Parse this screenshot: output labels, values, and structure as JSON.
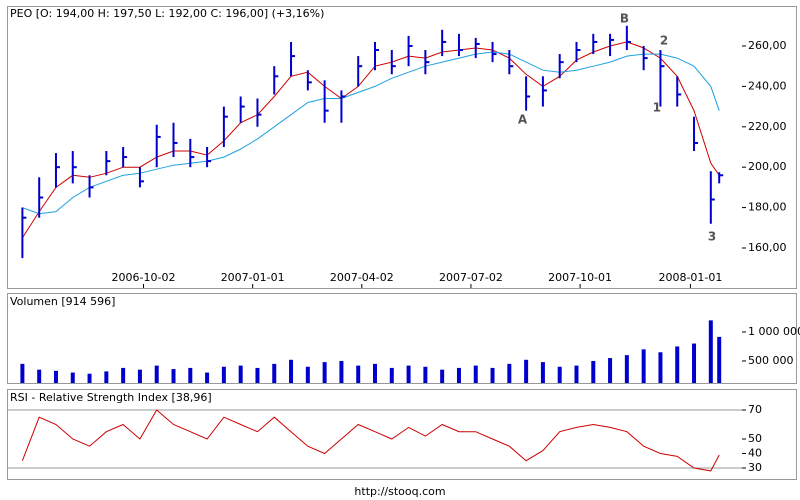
{
  "chart_data": [
    {
      "type": "ohlc",
      "title": "PEO [O: 194,00  H: 197,50  L: 192,00  C: 196,00] (+3,16%)",
      "x": [
        "2006-06-23",
        "2006-07-07",
        "2006-07-21",
        "2006-08-04",
        "2006-08-18",
        "2006-09-01",
        "2006-09-15",
        "2006-09-29",
        "2006-10-13",
        "2006-10-27",
        "2006-11-10",
        "2006-11-24",
        "2006-12-08",
        "2006-12-22",
        "2007-01-05",
        "2007-01-19",
        "2007-02-02",
        "2007-02-16",
        "2007-03-02",
        "2007-03-16",
        "2007-03-30",
        "2007-04-13",
        "2007-04-27",
        "2007-05-11",
        "2007-05-25",
        "2007-06-08",
        "2007-06-22",
        "2007-07-06",
        "2007-07-20",
        "2007-08-03",
        "2007-08-17",
        "2007-08-31",
        "2007-09-14",
        "2007-09-28",
        "2007-10-12",
        "2007-10-26",
        "2007-11-09",
        "2007-11-23",
        "2007-12-07",
        "2007-12-21",
        "2008-01-04",
        "2008-01-18",
        "2008-01-25"
      ],
      "high": [
        180,
        195,
        207,
        208,
        196,
        208,
        210,
        200,
        221,
        222,
        214,
        210,
        230,
        235,
        234,
        250,
        262,
        248,
        243,
        238,
        255,
        262,
        258,
        265,
        258,
        268,
        266,
        264,
        262,
        258,
        245,
        245,
        256,
        262,
        266,
        266,
        270,
        260,
        258,
        245,
        225,
        198,
        197.5
      ],
      "low": [
        155,
        175,
        190,
        192,
        185,
        196,
        200,
        190,
        200,
        205,
        200,
        200,
        210,
        222,
        220,
        236,
        245,
        238,
        222,
        222,
        240,
        248,
        246,
        250,
        246,
        255,
        255,
        254,
        252,
        246,
        228,
        230,
        244,
        252,
        256,
        255,
        258,
        248,
        230,
        230,
        208,
        172,
        192
      ],
      "close": [
        175,
        185,
        200,
        200,
        190,
        203,
        205,
        193,
        215,
        212,
        205,
        203,
        225,
        230,
        226,
        245,
        255,
        242,
        228,
        235,
        250,
        258,
        250,
        260,
        252,
        262,
        258,
        261,
        256,
        250,
        235,
        238,
        252,
        258,
        262,
        263,
        262,
        254,
        250,
        236,
        212,
        184,
        196
      ],
      "color": "#0000cc",
      "series": [
        {
          "color": "#cc0000",
          "values": [
            165,
            178,
            190,
            196,
            195,
            197,
            200,
            200,
            205,
            208,
            208,
            206,
            213,
            222,
            226,
            235,
            245,
            247,
            240,
            234,
            240,
            250,
            252,
            255,
            254,
            257,
            258,
            259,
            258,
            254,
            246,
            240,
            245,
            253,
            257,
            260,
            262,
            259,
            254,
            245,
            228,
            202,
            196
          ]
        },
        {
          "color": "#1ea0e0",
          "values": [
            180,
            177,
            178,
            185,
            190,
            193,
            196,
            197,
            199,
            201,
            202,
            203,
            205,
            209,
            214,
            220,
            226,
            232,
            234,
            234,
            237,
            240,
            244,
            247,
            250,
            252,
            254,
            256,
            257,
            256,
            252,
            248,
            247,
            248,
            250,
            252,
            255,
            256,
            256,
            254,
            250,
            240,
            228
          ]
        }
      ],
      "xlim": [
        "2006-06-11",
        "2008-02-13"
      ],
      "xticks": [
        "2006-10-02",
        "2007-01-01",
        "2007-04-02",
        "2007-07-02",
        "2007-10-01",
        "2008-01-01"
      ],
      "ylim": [
        140.2,
        278.8
      ],
      "yticks": [
        {
          "value": 160,
          "label": "160,00"
        },
        {
          "value": 180,
          "label": "180,00"
        },
        {
          "value": 200,
          "label": "200,00"
        },
        {
          "value": 220,
          "label": "220,00"
        },
        {
          "value": 240,
          "label": "240,00"
        },
        {
          "value": 260,
          "label": "260,00"
        }
      ],
      "annotations": [
        {
          "label": "A",
          "x": "2007-08-14",
          "y": 223.4
        },
        {
          "label": "B",
          "x": "2007-11-07",
          "y": 273.4
        },
        {
          "label": "1",
          "x": "2007-12-04",
          "y": 229.3
        },
        {
          "label": "2",
          "x": "2007-12-10",
          "y": 262.5
        },
        {
          "label": "3",
          "x": "2008-01-19",
          "y": 165.4
        }
      ]
    },
    {
      "type": "bar",
      "title": "Volumen [914 596]",
      "x": [
        "2006-06-23",
        "2006-07-07",
        "2006-07-21",
        "2006-08-04",
        "2006-08-18",
        "2006-09-01",
        "2006-09-15",
        "2006-09-29",
        "2006-10-13",
        "2006-10-27",
        "2006-11-10",
        "2006-11-24",
        "2006-12-08",
        "2006-12-22",
        "2007-01-05",
        "2007-01-19",
        "2007-02-02",
        "2007-02-16",
        "2007-03-02",
        "2007-03-16",
        "2007-03-30",
        "2007-04-13",
        "2007-04-27",
        "2007-05-11",
        "2007-05-25",
        "2007-06-08",
        "2007-06-22",
        "2007-07-06",
        "2007-07-20",
        "2007-08-03",
        "2007-08-17",
        "2007-08-31",
        "2007-09-14",
        "2007-09-28",
        "2007-10-12",
        "2007-10-26",
        "2007-11-09",
        "2007-11-23",
        "2007-12-07",
        "2007-12-21",
        "2008-01-04",
        "2008-01-18",
        "2008-01-25"
      ],
      "values": [
        450000,
        350000,
        330000,
        300000,
        280000,
        320000,
        380000,
        350000,
        420000,
        360000,
        380000,
        300000,
        400000,
        420000,
        380000,
        450000,
        520000,
        400000,
        480000,
        500000,
        420000,
        450000,
        380000,
        420000,
        400000,
        350000,
        380000,
        420000,
        380000,
        450000,
        520000,
        480000,
        400000,
        420000,
        500000,
        550000,
        600000,
        700000,
        650000,
        750000,
        800000,
        1200000,
        914596
      ],
      "color": "#0000cc",
      "xlim": [
        "2006-06-11",
        "2008-02-13"
      ],
      "ylim": [
        120000,
        1620000
      ],
      "yticks": [
        {
          "value": 500000,
          "label": "500 000"
        },
        {
          "value": 1000000,
          "label": "1 000 000"
        }
      ]
    },
    {
      "type": "line",
      "title": "RSI - Relative Strength Index [38,96]",
      "x": [
        "2006-06-23",
        "2006-07-07",
        "2006-07-21",
        "2006-08-04",
        "2006-08-18",
        "2006-09-01",
        "2006-09-15",
        "2006-09-29",
        "2006-10-13",
        "2006-10-27",
        "2006-11-10",
        "2006-11-24",
        "2006-12-08",
        "2006-12-22",
        "2007-01-05",
        "2007-01-19",
        "2007-02-02",
        "2007-02-16",
        "2007-03-02",
        "2007-03-16",
        "2007-03-30",
        "2007-04-13",
        "2007-04-27",
        "2007-05-11",
        "2007-05-25",
        "2007-06-08",
        "2007-06-22",
        "2007-07-06",
        "2007-07-20",
        "2007-08-03",
        "2007-08-17",
        "2007-08-31",
        "2007-09-14",
        "2007-09-28",
        "2007-10-12",
        "2007-10-26",
        "2007-11-09",
        "2007-11-23",
        "2007-12-07",
        "2007-12-21",
        "2008-01-04",
        "2008-01-18",
        "2008-01-25"
      ],
      "values": [
        35,
        65,
        60,
        50,
        45,
        55,
        60,
        50,
        70,
        60,
        55,
        50,
        65,
        60,
        55,
        65,
        55,
        45,
        40,
        50,
        60,
        55,
        50,
        58,
        52,
        60,
        55,
        55,
        50,
        45,
        35,
        42,
        55,
        58,
        60,
        58,
        55,
        45,
        40,
        38,
        30,
        28,
        38.96
      ],
      "color": "#cc0000",
      "xlim": [
        "2006-06-11",
        "2008-02-13"
      ],
      "ylim": [
        23.1,
        82.4
      ],
      "yticks": [
        30,
        40,
        50,
        70
      ],
      "reference_lines": [
        30,
        70
      ]
    }
  ],
  "footer": "http://stooq.com"
}
